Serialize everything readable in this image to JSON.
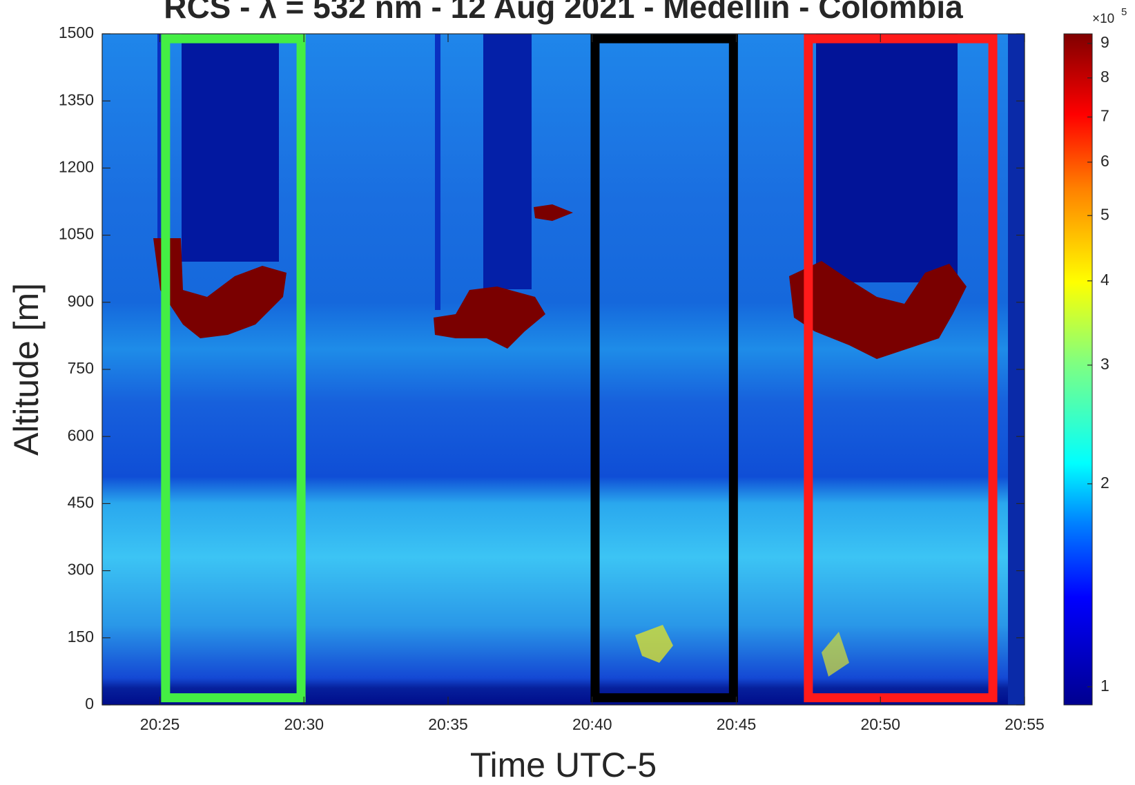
{
  "chart_data": {
    "type": "heatmap",
    "title": "RCS - λ = 532 nm - 12 Aug 2021 - Medellín - Colombia",
    "x_label": "Time UTC-5",
    "y_label": "Altitude [m]",
    "xlim": [
      1223.0,
      1255
    ],
    "xticks": [
      {
        "value": 1225,
        "label": "20:25"
      },
      {
        "value": 1230,
        "label": "20:30"
      },
      {
        "value": 1235,
        "label": "20:35"
      },
      {
        "value": 1240,
        "label": "20:40"
      },
      {
        "value": 1245,
        "label": "20:45"
      },
      {
        "value": 1250,
        "label": "20:50"
      },
      {
        "value": 1255,
        "label": "20:55"
      }
    ],
    "ylim": [
      0,
      1500
    ],
    "yticks": [
      0,
      150,
      300,
      450,
      600,
      750,
      900,
      1050,
      1200,
      1350,
      1500
    ],
    "colorbar": {
      "scale": "log",
      "ylim": [
        0.94,
        9.3
      ],
      "yticks": [
        1,
        2,
        3,
        4,
        5,
        6,
        7,
        8,
        9
      ],
      "multiplier": "×10",
      "exponent": "5"
    },
    "annotations": [
      {
        "color": "#44ee44",
        "xlim": [
          1225.2,
          1229.9
        ],
        "ylim": [
          16,
          1489
        ]
      },
      {
        "color": "#000000",
        "xlim": [
          1240.1,
          1244.9
        ],
        "ylim": [
          16,
          1489
        ]
      },
      {
        "color": "#ff1a1a",
        "xlim": [
          1247.5,
          1253.9
        ],
        "ylim": [
          16,
          1489
        ]
      }
    ]
  }
}
